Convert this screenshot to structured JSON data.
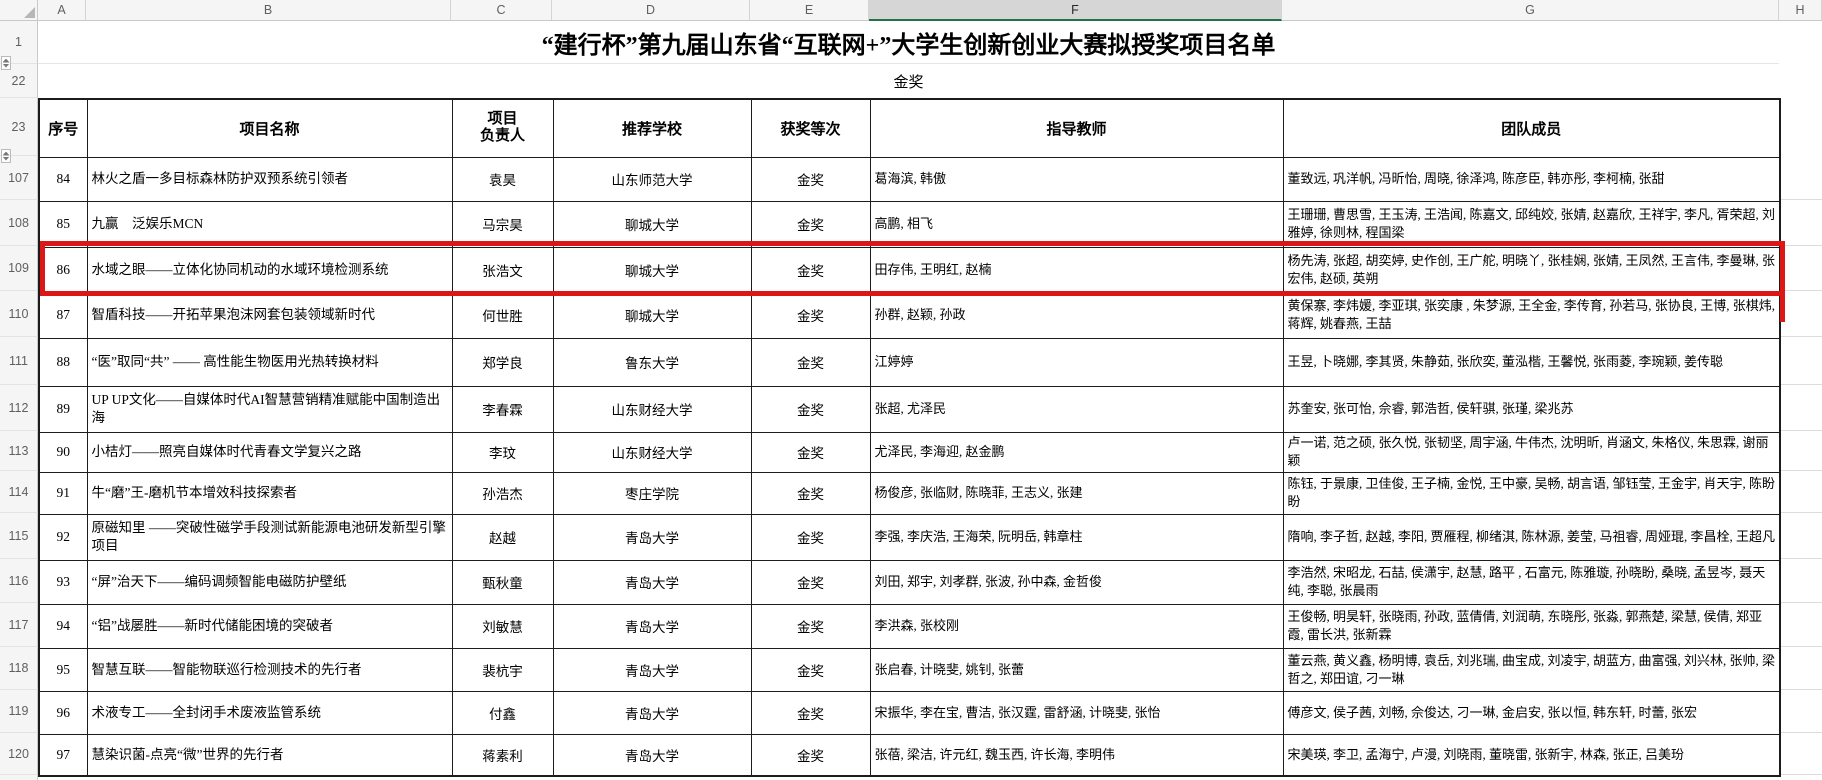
{
  "sheet": {
    "column_letters": [
      "A",
      "B",
      "C",
      "D",
      "E",
      "F",
      "G",
      "H"
    ],
    "selected_column_letter": "F",
    "top_row_labels": [
      "1",
      "22",
      "23"
    ],
    "title": "“建行杯”第九届山东省“互联网+”大学生创新创业大赛拟授奖项目名单",
    "section_label": "金奖",
    "accent_green": "#217346",
    "highlight_red": "#dd1616"
  },
  "table": {
    "headers": {
      "no": "序号",
      "project": "项目名称",
      "leader": "项目\n负责人",
      "school": "推荐学校",
      "award": "获奖等次",
      "teachers": "指导教师",
      "members": "团队成员"
    },
    "rows": [
      {
        "excel_row": "107",
        "no": "84",
        "project": "林火之盾一多目标森林防护双预系统引领者",
        "leader": "袁昊",
        "school": "山东师范大学",
        "award": "金奖",
        "teachers": "葛海滨, 韩傲",
        "members": "董致远, 巩洋帆, 冯昕怡, 周晓, 徐泽鸿, 陈彦臣, 韩亦彤, 李柯楠, 张甜",
        "highlighted": false
      },
      {
        "excel_row": "108",
        "no": "85",
        "project": "九赢　泛娱乐MCN",
        "leader": "马宗昊",
        "school": "聊城大学",
        "award": "金奖",
        "teachers": "高鹏, 相飞",
        "members": "王珊珊, 曹思雪, 王玉涛, 王浩闻, 陈嘉文, 邱纯姣, 张婧, 赵嘉欣, 王祥宇, 李凡, 胥荣超, 刘雅婷, 徐则林, 程国梁",
        "highlighted": false
      },
      {
        "excel_row": "109",
        "no": "86",
        "project": "水域之眼——立体化协同机动的水域环境检测系统",
        "leader": "张浩文",
        "school": "聊城大学",
        "award": "金奖",
        "teachers": "田存伟, 王明红, 赵楠",
        "members": "杨先涛, 张超, 胡奕婷, 史作创, 王广舵, 明晓丫, 张桂娴, 张婧, 王凤然, 王言伟, 李曼琳, 张宏伟, 赵硕, 英朔",
        "highlighted": true
      },
      {
        "excel_row": "110",
        "no": "87",
        "project": "智盾科技——开拓苹果泡沫网套包装领域新时代",
        "leader": "何世胜",
        "school": "聊城大学",
        "award": "金奖",
        "teachers": "孙群, 赵颖, 孙政",
        "members": "黄保寨, 李炜媛, 李亚琪, 张奕康 , 朱梦源, 王全金, 李传育, 孙若马, 张协良, 王博, 张棋炜, 蒋辉, 姚春燕, 王喆",
        "highlighted": false
      },
      {
        "excel_row": "111",
        "no": "88",
        "project": "“医”取同“共” —— 高性能生物医用光热转换材料",
        "leader": "郑学良",
        "school": "鲁东大学",
        "award": "金奖",
        "teachers": "江婷婷",
        "members": "王昱, 卜晓娜, 李其贤, 朱静茹, 张欣奕, 董泓楷, 王馨悦, 张雨菱, 李琬颖, 姜传聪",
        "highlighted": false
      },
      {
        "excel_row": "112",
        "no": "89",
        "project": "UP UP文化——自媒体时代AI智慧营销精准赋能中国制造出海",
        "leader": "李春霖",
        "school": "山东财经大学",
        "award": "金奖",
        "teachers": "张超, 尤泽民",
        "members": "苏奎安, 张可怡, 佘睿, 郭浩哲, 侯轩骐, 张瑾, 梁兆苏",
        "highlighted": false
      },
      {
        "excel_row": "113",
        "no": "90",
        "project": "小桔灯——照亮自媒体时代青春文学复兴之路",
        "leader": "李玟",
        "school": "山东财经大学",
        "award": "金奖",
        "teachers": "尤泽民, 李海迎, 赵金鹏",
        "members": "卢一诺, 范之硕, 张久悦, 张韧坚, 周宇涵, 牛伟杰, 沈明昕, 肖涵文, 朱格仪, 朱思霖, 谢丽颖",
        "highlighted": false
      },
      {
        "excel_row": "114",
        "no": "91",
        "project": "牛“磨”王-磨机节本增效科技探索者",
        "leader": "孙浩杰",
        "school": "枣庄学院",
        "award": "金奖",
        "teachers": "杨俊彦, 张临财, 陈晓菲, 王志义, 张建",
        "members": "陈钰, 于景康, 卫佳俊, 王子楠, 金悦, 王中豪, 吴畅, 胡言语, 邹钰莹, 王金宇, 肖天宇, 陈盼盼",
        "highlighted": false
      },
      {
        "excel_row": "115",
        "no": "92",
        "project": "原磁知里 ——突破性磁学手段测试新能源电池研发新型引擎项目",
        "leader": "赵越",
        "school": "青岛大学",
        "award": "金奖",
        "teachers": "李强, 李庆浩, 王海荣, 阮明岳, 韩章柱",
        "members": "隋响, 李子哲, 赵越, 李阳, 贾雁程, 柳绪淇, 陈林源, 姜莹, 马祖睿, 周娅琨, 李昌栓, 王超凡",
        "highlighted": false
      },
      {
        "excel_row": "116",
        "no": "93",
        "project": "“屏”治天下——编码调频智能电磁防护壁纸",
        "leader": "甄秋童",
        "school": "青岛大学",
        "award": "金奖",
        "teachers": "刘田, 郑宇, 刘孝群, 张波, 孙中森, 金哲俊",
        "members": "李浩然, 宋昭龙, 石喆, 侯潇宇, 赵慧, 路平 , 石富元, 陈雅璇, 孙晓盼, 桑晓, 孟昱岑, 聂天纯, 李聪, 张晨雨",
        "highlighted": false
      },
      {
        "excel_row": "117",
        "no": "94",
        "project": "“铝”战屡胜——新时代储能困境的突破者",
        "leader": "刘敏慧",
        "school": "青岛大学",
        "award": "金奖",
        "teachers": "李洪森, 张校刚",
        "members": "王俊畅, 明昊轩, 张晓雨, 孙政, 蓝倩倩, 刘润萌, 东晓彤, 张淼, 郭燕楚, 梁慧, 侯倩, 郑亚霞, 雷长洪, 张新霖",
        "highlighted": false
      },
      {
        "excel_row": "118",
        "no": "95",
        "project": "智慧互联——智能物联巡行检测技术的先行者",
        "leader": "裴杭宇",
        "school": "青岛大学",
        "award": "金奖",
        "teachers": "张启春, 计晓斐, 姚钊, 张蕾",
        "members": "董云燕, 黄义鑫, 杨明博, 袁岳, 刘兆瑞, 曲宝成, 刘凌宇, 胡蓝方, 曲富强, 刘兴林, 张帅, 梁哲之, 郑田谊, 刁一琳",
        "highlighted": false
      },
      {
        "excel_row": "119",
        "no": "96",
        "project": "术液专工——全封闭手术废液监管系统",
        "leader": "付鑫",
        "school": "青岛大学",
        "award": "金奖",
        "teachers": "宋振华, 李在宝, 曹洁, 张汉霆, 雷舒涵, 计晓斐, 张怡",
        "members": "傅彦文, 侯子茜, 刘畅, 佘俊达, 刁一琳, 金启安, 张以恒, 韩东轩, 时蕾, 张宏",
        "highlighted": false
      },
      {
        "excel_row": "120",
        "no": "97",
        "project": "慧染识菌-点亮“微”世界的先行者",
        "leader": "蒋素利",
        "school": "青岛大学",
        "award": "金奖",
        "teachers": "张蓓, 梁洁, 许元红, 魏玉西, 许长海, 李明伟",
        "members": "宋美瑛, 李卫, 孟海宁, 卢漫, 刘晓雨, 董晓雷, 张新宇, 林森, 张正, 吕美玢",
        "highlighted": false
      }
    ]
  }
}
